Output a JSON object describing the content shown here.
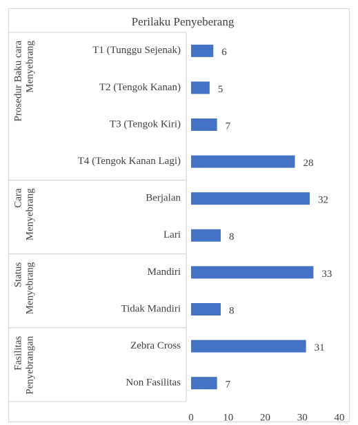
{
  "chart_data": {
    "type": "bar",
    "title": "Perilaku Penyeberang",
    "color": "#4472c4",
    "groups": [
      {
        "label": [
          "Prosedur Baku cara",
          "Menyebrang"
        ],
        "categories": [
          "T1 (Tunggu Sejenak)",
          "T2 (Tengok Kanan)",
          "T3 (Tengok Kiri)",
          "T4 (Tengok Kanan Lagi)"
        ],
        "values": [
          6,
          5,
          7,
          28
        ]
      },
      {
        "label": [
          "Cara",
          "Menyebrang"
        ],
        "categories": [
          "Berjalan",
          "Lari"
        ],
        "values": [
          32,
          8
        ]
      },
      {
        "label": [
          "Status",
          "Menyebrang"
        ],
        "categories": [
          "Mandiri",
          "Tidak Mandiri"
        ],
        "values": [
          33,
          8
        ]
      },
      {
        "label": [
          "Fasilitas",
          "Penyebrangan"
        ],
        "categories": [
          "Zebra Cross",
          "Non Fasilitas"
        ],
        "values": [
          31,
          7
        ]
      }
    ],
    "xlim": [
      0,
      40
    ],
    "xticks": [
      0,
      10,
      20,
      30,
      40
    ],
    "grid": false
  }
}
